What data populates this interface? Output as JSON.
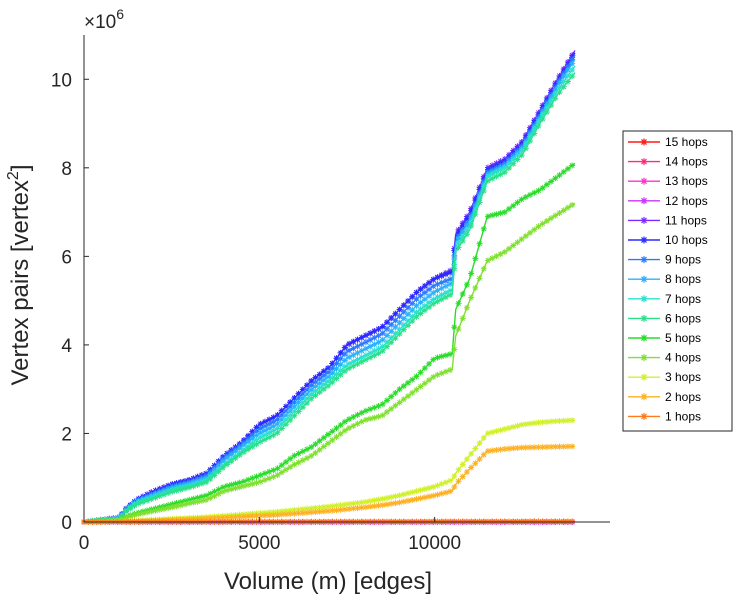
{
  "chart_data": {
    "type": "line",
    "title": "",
    "xlabel": "Volume (m) [edges]",
    "ylabel": "Vertex pairs [vertex",
    "ylabel_superscript": "2",
    "ylabel_suffix": "]",
    "y_multiplier": "×10",
    "y_multiplier_exponent": "6",
    "xlim": [
      0,
      15000
    ],
    "ylim": [
      0,
      11000000
    ],
    "xticks": [
      0,
      5000,
      10000
    ],
    "xtick_labels": [
      "0",
      "5000",
      "10000"
    ],
    "yticks": [
      0,
      2000000,
      4000000,
      6000000,
      8000000,
      10000000
    ],
    "ytick_labels": [
      "0",
      "2",
      "4",
      "6",
      "8",
      "10"
    ],
    "grid": false,
    "legend_position": "right",
    "x": [
      0,
      500,
      1000,
      1200,
      1500,
      2000,
      2500,
      3000,
      3500,
      4000,
      4500,
      5000,
      5500,
      6000,
      6500,
      7000,
      7500,
      8000,
      8500,
      9000,
      9500,
      10000,
      10500,
      10600,
      11000,
      11500,
      12000,
      12500,
      13000,
      13500,
      14000
    ],
    "series": [
      {
        "name": "15 hops",
        "color": "#ff1a1a",
        "values": [
          0,
          0,
          0,
          0,
          0,
          0,
          0,
          0,
          0,
          0,
          0,
          0,
          0,
          0,
          0,
          0,
          0,
          0,
          0,
          0,
          0,
          0,
          0,
          0,
          0,
          0,
          0,
          0,
          0,
          0,
          0
        ]
      },
      {
        "name": "14 hops",
        "color": "#ff2a7a",
        "values": [
          0,
          0,
          0,
          0,
          0,
          0,
          0,
          0,
          0,
          0,
          0,
          0,
          0,
          0,
          0,
          0,
          0,
          0,
          0,
          0,
          0,
          0,
          0,
          0,
          0,
          0,
          0,
          0,
          0,
          0,
          0
        ]
      },
      {
        "name": "13 hops",
        "color": "#ff33cc",
        "values": [
          0,
          0,
          0,
          0,
          0,
          0,
          0,
          0,
          0,
          0,
          0,
          0,
          0,
          0,
          0,
          0,
          0,
          0,
          0,
          0,
          0,
          0,
          0,
          0,
          0,
          0,
          0,
          0,
          0,
          0,
          0
        ]
      },
      {
        "name": "12 hops",
        "color": "#cc33ff",
        "values": [
          0,
          0,
          0,
          0,
          0,
          0,
          0,
          0,
          0,
          0,
          0,
          0,
          0,
          0,
          0,
          0,
          0,
          0,
          0,
          0,
          0,
          0,
          0,
          0,
          0,
          0,
          0,
          0,
          0,
          0,
          0
        ]
      },
      {
        "name": "11 hops",
        "color": "#7a2aff",
        "values": [
          0,
          50000,
          100000,
          300000,
          500000,
          700000,
          850000,
          950000,
          1100000,
          1500000,
          1800000,
          2200000,
          2400000,
          2800000,
          3200000,
          3500000,
          4000000,
          4200000,
          4400000,
          4800000,
          5200000,
          5500000,
          5700000,
          6500000,
          7000000,
          8000000,
          8200000,
          8600000,
          9300000,
          10000000,
          10650000
        ]
      },
      {
        "name": "10 hops",
        "color": "#2a2aff",
        "values": [
          0,
          50000,
          100000,
          300000,
          500000,
          700000,
          850000,
          950000,
          1100000,
          1500000,
          1800000,
          2200000,
          2400000,
          2800000,
          3200000,
          3500000,
          4000000,
          4200000,
          4400000,
          4800000,
          5200000,
          5500000,
          5650000,
          6450000,
          6950000,
          7950000,
          8150000,
          8550000,
          9250000,
          9950000,
          10600000
        ]
      },
      {
        "name": "9 hops",
        "color": "#2a7aff",
        "values": [
          0,
          45000,
          90000,
          280000,
          480000,
          650000,
          800000,
          900000,
          1050000,
          1450000,
          1750000,
          2100000,
          2300000,
          2700000,
          3100000,
          3400000,
          3850000,
          4050000,
          4250000,
          4650000,
          5050000,
          5350000,
          5500000,
          6350000,
          6850000,
          7900000,
          8100000,
          8500000,
          9200000,
          9900000,
          10550000
        ]
      },
      {
        "name": "8 hops",
        "color": "#2ab0ff",
        "values": [
          0,
          45000,
          90000,
          270000,
          460000,
          620000,
          770000,
          870000,
          1000000,
          1400000,
          1700000,
          2000000,
          2200000,
          2600000,
          3000000,
          3300000,
          3700000,
          3900000,
          4100000,
          4500000,
          4900000,
          5200000,
          5400000,
          6300000,
          6800000,
          7850000,
          8050000,
          8450000,
          9150000,
          9850000,
          10450000
        ]
      },
      {
        "name": "7 hops",
        "color": "#2ae0d0",
        "values": [
          0,
          40000,
          80000,
          250000,
          430000,
          580000,
          720000,
          820000,
          950000,
          1300000,
          1600000,
          1900000,
          2100000,
          2500000,
          2900000,
          3200000,
          3550000,
          3750000,
          3950000,
          4350000,
          4750000,
          5050000,
          5250000,
          6200000,
          6700000,
          7800000,
          8000000,
          8400000,
          9100000,
          9750000,
          10300000
        ]
      },
      {
        "name": "6 hops",
        "color": "#2ae08a",
        "values": [
          0,
          40000,
          80000,
          240000,
          400000,
          540000,
          680000,
          780000,
          900000,
          1250000,
          1550000,
          1800000,
          2000000,
          2400000,
          2800000,
          3100000,
          3450000,
          3650000,
          3850000,
          4250000,
          4650000,
          4950000,
          5150000,
          6100000,
          6600000,
          7700000,
          7900000,
          8300000,
          9000000,
          9650000,
          10150000
        ]
      },
      {
        "name": "5 hops",
        "color": "#2adc2a",
        "values": [
          0,
          20000,
          50000,
          120000,
          200000,
          300000,
          400000,
          500000,
          600000,
          800000,
          900000,
          1050000,
          1200000,
          1500000,
          1700000,
          2000000,
          2300000,
          2500000,
          2650000,
          3000000,
          3300000,
          3700000,
          3800000,
          4800000,
          5500000,
          6900000,
          7000000,
          7300000,
          7500000,
          7800000,
          8100000
        ]
      },
      {
        "name": "4 hops",
        "color": "#80e030",
        "values": [
          0,
          15000,
          40000,
          100000,
          170000,
          250000,
          330000,
          420000,
          500000,
          700000,
          800000,
          900000,
          1050000,
          1300000,
          1500000,
          1800000,
          2100000,
          2300000,
          2400000,
          2700000,
          3000000,
          3300000,
          3450000,
          4200000,
          5000000,
          5900000,
          6100000,
          6400000,
          6700000,
          6950000,
          7200000
        ]
      },
      {
        "name": "3 hops",
        "color": "#d0f02a",
        "values": [
          0,
          5000,
          10000,
          20000,
          30000,
          50000,
          70000,
          90000,
          110000,
          140000,
          170000,
          200000,
          230000,
          270000,
          310000,
          350000,
          400000,
          450000,
          520000,
          600000,
          700000,
          800000,
          950000,
          1100000,
          1500000,
          2000000,
          2100000,
          2200000,
          2250000,
          2280000,
          2300000
        ]
      },
      {
        "name": "2 hops",
        "color": "#ffb020",
        "values": [
          0,
          3000,
          6000,
          12000,
          20000,
          35000,
          50000,
          65000,
          80000,
          100000,
          120000,
          140000,
          160000,
          190000,
          220000,
          250000,
          290000,
          330000,
          380000,
          440000,
          520000,
          600000,
          700000,
          850000,
          1200000,
          1600000,
          1650000,
          1680000,
          1690000,
          1700000,
          1710000
        ]
      },
      {
        "name": "1 hops",
        "color": "#ff7a1a",
        "values": [
          0,
          500,
          1000,
          1200,
          1500,
          2000,
          2500,
          3000,
          3500,
          4000,
          4500,
          5000,
          5500,
          6000,
          6500,
          7000,
          7500,
          8000,
          8500,
          9000,
          9500,
          10000,
          10500,
          10600,
          11000,
          11500,
          12000,
          12500,
          13000,
          13500,
          14000
        ]
      }
    ]
  }
}
